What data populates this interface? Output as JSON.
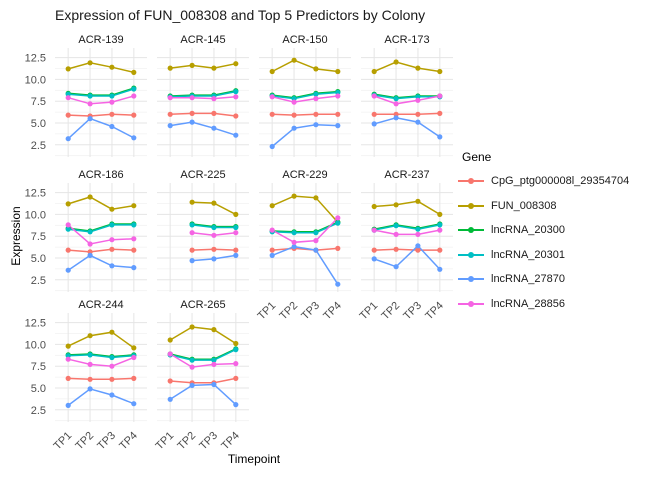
{
  "title": "Expression of FUN_008308 and Top 5 Predictors by Colony",
  "chart_data": {
    "type": "line",
    "title": "Expression of FUN_008308 and Top 5 Predictors by Colony",
    "xlabel": "Timepoint",
    "ylabel": "Expression",
    "categories": [
      "TP1",
      "TP2",
      "TP3",
      "TP4"
    ],
    "y_ticks": [
      "2.5",
      "5.0",
      "7.5",
      "10.0",
      "12.5"
    ],
    "y_tick_values": [
      2.5,
      5.0,
      7.5,
      10.0,
      12.5
    ],
    "ylim": [
      1.1,
      13.6
    ],
    "grid": "on",
    "legend_title": "Gene",
    "legend_position": "right",
    "genes": [
      {
        "name": "CpG_ptg000008l_29354704",
        "color": "#F8766D"
      },
      {
        "name": "FUN_008308",
        "color": "#B79F00"
      },
      {
        "name": "lncRNA_20300",
        "color": "#00BA38"
      },
      {
        "name": "lncRNA_20301",
        "color": "#00BFC4"
      },
      {
        "name": "lncRNA_27870",
        "color": "#619CFF"
      },
      {
        "name": "lncRNA_28856",
        "color": "#F564E3"
      }
    ],
    "facets": [
      {
        "colony": "ACR-139",
        "series": {
          "CpG_ptg000008l_29354704": [
            5.9,
            5.8,
            6.0,
            5.9
          ],
          "FUN_008308": [
            11.2,
            11.9,
            11.4,
            10.8
          ],
          "lncRNA_20300": [
            8.4,
            8.2,
            8.2,
            9.0
          ],
          "lncRNA_20301": [
            8.3,
            8.1,
            8.1,
            8.9
          ],
          "lncRNA_27870": [
            3.2,
            5.5,
            4.6,
            3.3
          ],
          "lncRNA_28856": [
            7.9,
            7.2,
            7.4,
            8.1
          ]
        }
      },
      {
        "colony": "ACR-145",
        "series": {
          "CpG_ptg000008l_29354704": [
            6.0,
            6.1,
            6.1,
            5.8
          ],
          "FUN_008308": [
            11.3,
            11.6,
            11.3,
            11.8
          ],
          "lncRNA_20300": [
            8.1,
            8.2,
            8.2,
            8.7
          ],
          "lncRNA_20301": [
            8.0,
            8.1,
            8.1,
            8.6
          ],
          "lncRNA_27870": [
            4.7,
            5.1,
            4.4,
            3.6
          ],
          "lncRNA_28856": [
            7.9,
            7.9,
            7.8,
            8.0
          ]
        }
      },
      {
        "colony": "ACR-150",
        "series": {
          "CpG_ptg000008l_29354704": [
            6.0,
            5.9,
            6.0,
            6.0
          ],
          "FUN_008308": [
            10.9,
            12.2,
            11.2,
            10.9
          ],
          "lncRNA_20300": [
            8.2,
            7.9,
            8.4,
            8.6
          ],
          "lncRNA_20301": [
            8.1,
            7.8,
            8.3,
            8.5
          ],
          "lncRNA_27870": [
            2.3,
            4.4,
            4.8,
            4.7
          ],
          "lncRNA_28856": [
            8.0,
            7.4,
            7.8,
            8.1
          ]
        }
      },
      {
        "colony": "ACR-173",
        "series": {
          "CpG_ptg000008l_29354704": [
            6.0,
            6.0,
            6.0,
            6.1
          ],
          "FUN_008308": [
            10.9,
            12.0,
            11.3,
            10.9
          ],
          "lncRNA_20300": [
            8.3,
            7.9,
            8.1,
            8.1
          ],
          "lncRNA_20301": [
            8.2,
            7.8,
            8.0,
            8.0
          ],
          "lncRNA_27870": [
            4.9,
            5.6,
            5.1,
            3.4
          ],
          "lncRNA_28856": [
            8.1,
            7.2,
            7.6,
            8.1
          ]
        }
      },
      {
        "colony": "ACR-186",
        "series": {
          "CpG_ptg000008l_29354704": [
            5.9,
            5.7,
            6.0,
            5.9
          ],
          "FUN_008308": [
            11.2,
            12.0,
            10.6,
            11.0
          ],
          "lncRNA_20300": [
            8.4,
            8.1,
            8.9,
            8.9
          ],
          "lncRNA_20301": [
            8.3,
            8.0,
            8.8,
            8.8
          ],
          "lncRNA_27870": [
            3.6,
            5.3,
            4.1,
            3.9
          ],
          "lncRNA_28856": [
            8.8,
            6.6,
            7.1,
            7.2
          ]
        }
      },
      {
        "colony": "ACR-225",
        "series": {
          "CpG_ptg000008l_29354704": [
            null,
            5.9,
            6.0,
            5.9
          ],
          "FUN_008308": [
            null,
            11.4,
            11.3,
            10.0
          ],
          "lncRNA_20300": [
            null,
            8.9,
            8.6,
            8.6
          ],
          "lncRNA_20301": [
            null,
            8.8,
            8.5,
            8.5
          ],
          "lncRNA_27870": [
            null,
            4.7,
            4.9,
            5.3
          ],
          "lncRNA_28856": [
            null,
            7.9,
            7.6,
            7.9
          ]
        }
      },
      {
        "colony": "ACR-229",
        "series": {
          "CpG_ptg000008l_29354704": [
            5.9,
            6.1,
            5.9,
            6.1
          ],
          "FUN_008308": [
            11.0,
            12.1,
            11.9,
            9.1
          ],
          "lncRNA_20300": [
            8.1,
            8.0,
            8.0,
            9.1
          ],
          "lncRNA_20301": [
            8.0,
            7.9,
            7.9,
            9.0
          ],
          "lncRNA_27870": [
            5.3,
            6.3,
            5.9,
            2.0
          ],
          "lncRNA_28856": [
            8.2,
            6.8,
            7.0,
            9.6
          ]
        }
      },
      {
        "colony": "ACR-237",
        "series": {
          "CpG_ptg000008l_29354704": [
            5.9,
            6.0,
            5.9,
            5.9
          ],
          "FUN_008308": [
            10.9,
            11.1,
            11.5,
            10.0
          ],
          "lncRNA_20300": [
            8.3,
            8.8,
            8.4,
            8.9
          ],
          "lncRNA_20301": [
            8.2,
            8.7,
            8.3,
            8.8
          ],
          "lncRNA_27870": [
            4.9,
            4.0,
            6.4,
            3.7
          ],
          "lncRNA_28856": [
            8.2,
            7.7,
            7.7,
            8.2
          ]
        }
      },
      {
        "colony": "ACR-244",
        "series": {
          "CpG_ptg000008l_29354704": [
            6.1,
            6.0,
            6.0,
            6.1
          ],
          "FUN_008308": [
            9.8,
            11.0,
            11.4,
            9.6
          ],
          "lncRNA_20300": [
            8.8,
            8.9,
            8.6,
            8.8
          ],
          "lncRNA_20301": [
            8.7,
            8.8,
            8.5,
            8.7
          ],
          "lncRNA_27870": [
            3.0,
            4.9,
            4.2,
            3.2
          ],
          "lncRNA_28856": [
            8.3,
            7.7,
            7.5,
            8.5
          ]
        }
      },
      {
        "colony": "ACR-265",
        "series": {
          "CpG_ptg000008l_29354704": [
            5.8,
            5.6,
            5.6,
            6.1
          ],
          "FUN_008308": [
            10.5,
            12.0,
            11.7,
            10.1
          ],
          "lncRNA_20300": [
            8.9,
            8.3,
            8.3,
            9.5
          ],
          "lncRNA_20301": [
            8.8,
            8.2,
            8.2,
            9.4
          ],
          "lncRNA_27870": [
            3.7,
            5.3,
            5.4,
            3.1
          ],
          "lncRNA_28856": [
            8.9,
            7.4,
            7.7,
            7.8
          ]
        }
      }
    ]
  }
}
